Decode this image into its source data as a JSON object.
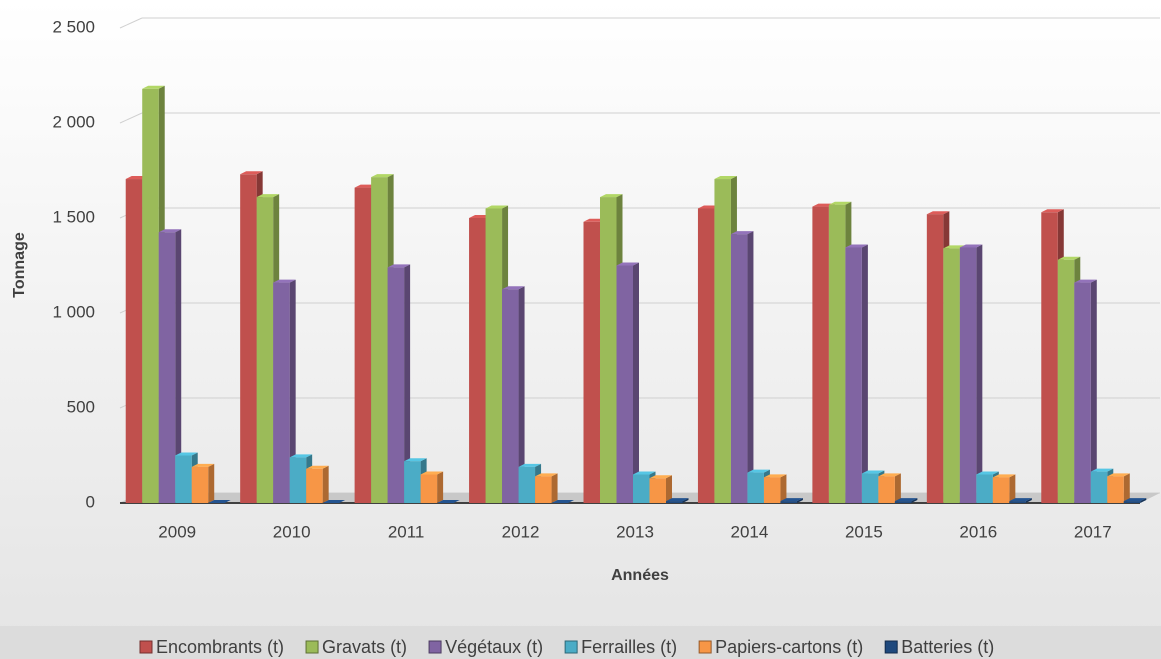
{
  "chart_data": {
    "type": "bar",
    "y_label": "Tonnage",
    "x_label": "Années",
    "categories": [
      "2009",
      "2010",
      "2011",
      "2012",
      "2013",
      "2014",
      "2015",
      "2016",
      "2017"
    ],
    "series": [
      {
        "name": "Encombrants (t)",
        "color": "#c0504d",
        "values": [
          1705,
          1730,
          1660,
          1500,
          1480,
          1550,
          1560,
          1520,
          1530
        ]
      },
      {
        "name": "Gravats (t)",
        "color": "#9bbb59",
        "values": [
          2180,
          1610,
          1715,
          1550,
          1610,
          1705,
          1570,
          1340,
          1280
        ]
      },
      {
        "name": "Végétaux (t)",
        "color": "#8064a2",
        "values": [
          1425,
          1160,
          1240,
          1125,
          1250,
          1415,
          1345,
          1345,
          1160
        ]
      },
      {
        "name": "Ferrailles (t)",
        "color": "#4bacc6",
        "values": [
          250,
          240,
          220,
          190,
          150,
          160,
          155,
          150,
          165
        ]
      },
      {
        "name": "Papiers-cartons (t)",
        "color": "#f79646",
        "values": [
          190,
          180,
          150,
          140,
          130,
          135,
          140,
          135,
          140
        ]
      },
      {
        "name": "Batteries (t)",
        "color": "#1f497d",
        "values": [
          0,
          0,
          0,
          0,
          10,
          10,
          10,
          10,
          10
        ]
      }
    ],
    "ylim": [
      0,
      2500
    ],
    "yticks": [
      0,
      500,
      {
        "value": 1000,
        "label": "1 000"
      },
      {
        "value": 1500,
        "label": "1 500"
      },
      {
        "value": 2000,
        "label": "2 000"
      },
      {
        "value": 2500,
        "label": "2 500"
      }
    ],
    "grid": true,
    "legend": "bottom"
  }
}
